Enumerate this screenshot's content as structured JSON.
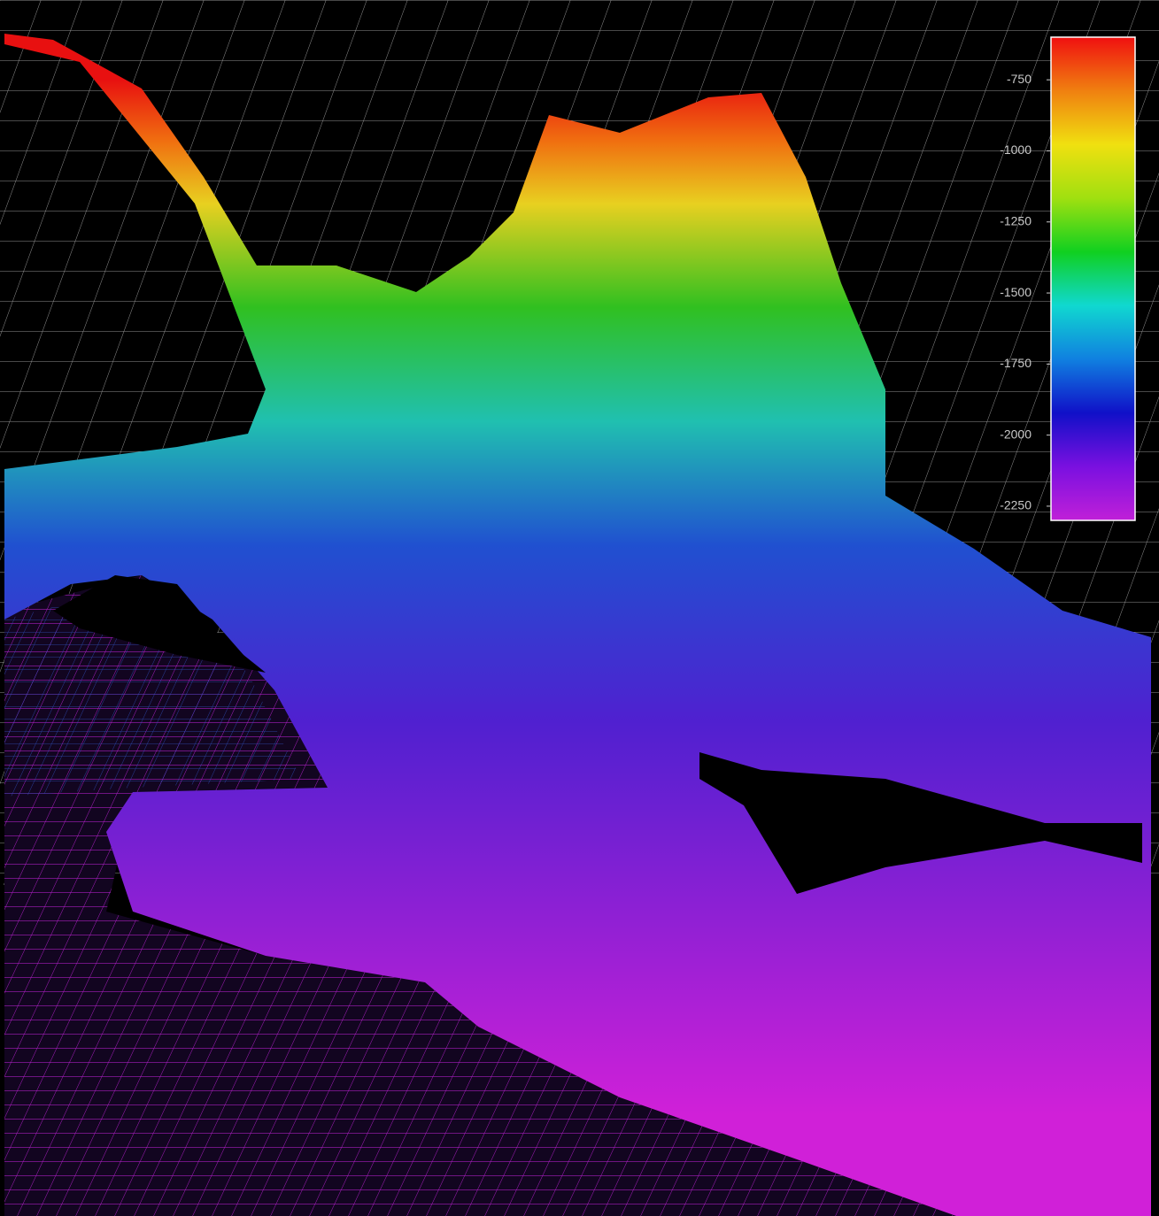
{
  "chart_data": {
    "type": "surface",
    "colorbar": {
      "lim": [
        -2300,
        -600
      ],
      "ticks": [
        -750,
        -1000,
        -1250,
        -1500,
        -1750,
        -2000,
        -2250
      ],
      "colors": [
        "#c020d8",
        "#7a10e0",
        "#1010c8",
        "#1080e0",
        "#10d8d0",
        "#10d020",
        "#a0e010",
        "#f0e010",
        "#f08010",
        "#f01010"
      ]
    }
  }
}
